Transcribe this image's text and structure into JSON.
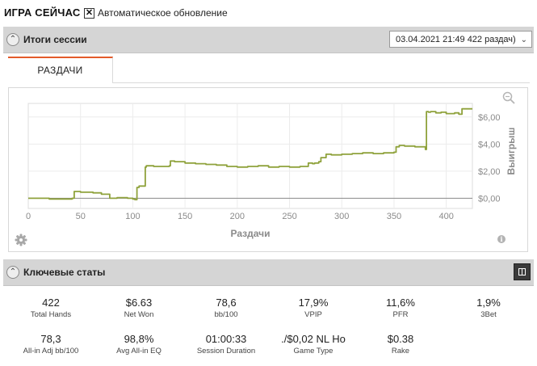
{
  "header": {
    "title": "ИГРА СЕЙЧАС",
    "auto_update_checked": "✕",
    "auto_update_label": "Автоматическое обновление"
  },
  "session": {
    "title": "Итоги сессии",
    "selector_value": "03.04.2021 21:49 422 раздач)",
    "tab_label": "РАЗДАЧИ"
  },
  "chart_data": {
    "type": "line",
    "xlabel": "Раздачи",
    "ylabel": "Выигрыш",
    "xlim": [
      0,
      425
    ],
    "ylim": [
      -0.75,
      7.0
    ],
    "x_ticks": [
      "0",
      "50",
      "100",
      "150",
      "200",
      "250",
      "300",
      "350",
      "400"
    ],
    "y_ticks": [
      "$0,00",
      "$2,00",
      "$4,00",
      "$6,00"
    ],
    "y_tick_values": [
      0,
      2,
      4,
      6
    ],
    "color": "#8fa23c",
    "x": [
      0,
      20,
      42,
      44,
      50,
      62,
      70,
      78,
      85,
      95,
      100,
      102,
      104,
      106,
      110,
      112,
      113,
      120,
      135,
      136,
      140,
      150,
      160,
      170,
      180,
      190,
      200,
      210,
      220,
      230,
      240,
      250,
      260,
      265,
      268,
      270,
      272,
      274,
      278,
      280,
      285,
      290,
      300,
      310,
      320,
      330,
      340,
      350,
      352,
      355,
      360,
      370,
      380,
      381,
      383,
      385,
      390,
      395,
      400,
      408,
      412,
      415,
      420,
      425
    ],
    "y": [
      0.0,
      -0.05,
      0.0,
      0.5,
      0.45,
      0.4,
      0.3,
      0.0,
      0.05,
      0.0,
      -0.05,
      -0.1,
      0.8,
      0.9,
      0.9,
      2.3,
      2.4,
      2.35,
      2.4,
      2.75,
      2.7,
      2.6,
      2.55,
      2.5,
      2.45,
      2.35,
      2.3,
      2.35,
      2.4,
      2.3,
      2.35,
      2.3,
      2.35,
      2.35,
      2.6,
      2.6,
      2.55,
      2.6,
      2.7,
      3.0,
      3.25,
      3.2,
      3.25,
      3.3,
      3.35,
      3.3,
      3.35,
      3.4,
      3.8,
      3.9,
      3.85,
      3.8,
      3.6,
      6.4,
      6.35,
      6.4,
      6.3,
      6.35,
      6.25,
      6.3,
      6.2,
      6.6,
      6.6,
      6.6
    ]
  },
  "key_stats": {
    "title": "Ключевые статы",
    "items": [
      {
        "value": "422",
        "label": "Total Hands"
      },
      {
        "value": "$6.63",
        "label": "Net Won"
      },
      {
        "value": "78,6",
        "label": "bb/100"
      },
      {
        "value": "17,9%",
        "label": "VPIP"
      },
      {
        "value": "11,6%",
        "label": "PFR"
      },
      {
        "value": "1,9%",
        "label": "3Bet"
      },
      {
        "value": "78,3",
        "label": "All-in Adj bb/100"
      },
      {
        "value": "98,8%",
        "label": "Avg All-in EQ"
      },
      {
        "value": "01:00:33",
        "label": "Session Duration"
      },
      {
        "value": "./$0,02 NL Ho",
        "label": "Game Type"
      },
      {
        "value": "$0.38",
        "label": "Rake"
      }
    ]
  }
}
